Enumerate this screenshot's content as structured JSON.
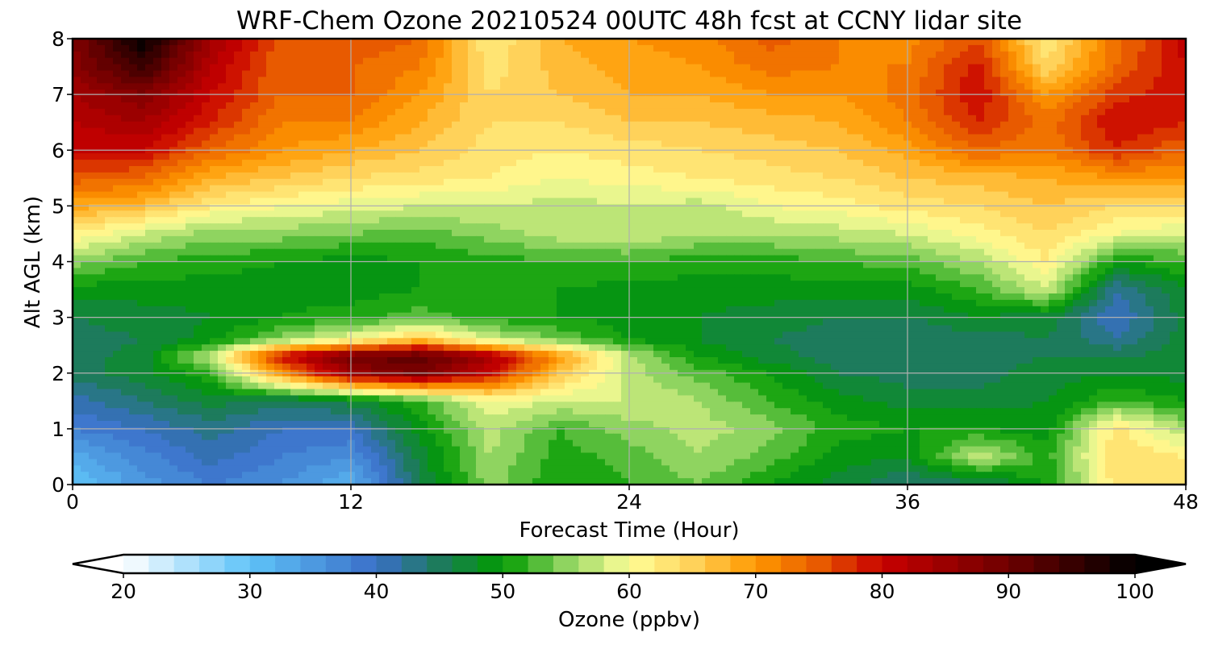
{
  "chart_data": {
    "type": "heatmap",
    "title": "WRF-Chem Ozone  20210524 00UTC 48h fcst at CCNY lidar site",
    "xlabel": "Forecast Time (Hour)",
    "ylabel": "Alt AGL (km)",
    "xlim": [
      0,
      48
    ],
    "ylim": [
      0,
      8
    ],
    "xticks": [
      0,
      12,
      24,
      36,
      48
    ],
    "yticks": [
      0,
      1,
      2,
      3,
      4,
      5,
      6,
      7,
      8
    ],
    "grid": true,
    "x": [
      0,
      3,
      6,
      9,
      12,
      15,
      18,
      21,
      24,
      27,
      30,
      33,
      36,
      39,
      42,
      45,
      48
    ],
    "y": [
      0,
      0.5,
      1,
      1.5,
      2,
      2.3,
      2.6,
      3,
      3.5,
      4,
      4.5,
      5,
      5.5,
      6,
      6.5,
      7,
      7.5,
      8
    ],
    "z": [
      [
        30,
        35,
        38,
        36,
        32,
        46,
        55,
        50,
        52,
        54,
        50,
        47,
        44,
        45,
        50,
        63,
        62
      ],
      [
        33,
        37,
        41,
        38,
        36,
        47,
        56,
        51,
        53,
        56,
        53,
        49,
        48,
        58,
        51,
        64,
        62
      ],
      [
        38,
        40,
        43,
        40,
        40,
        49,
        57,
        52,
        55,
        57,
        55,
        51,
        50,
        50,
        49,
        63,
        56
      ],
      [
        41,
        44,
        47,
        45,
        47,
        52,
        60,
        58,
        58,
        56,
        52,
        49,
        47,
        47,
        48,
        52,
        50
      ],
      [
        45,
        47,
        52,
        70,
        85,
        89,
        80,
        66,
        57,
        53,
        50,
        46,
        45,
        45,
        47,
        48,
        47
      ],
      [
        45,
        47,
        58,
        80,
        90,
        92,
        84,
        70,
        57,
        50,
        47,
        45,
        44,
        45,
        46,
        46,
        47
      ],
      [
        45,
        46,
        49,
        55,
        60,
        66,
        58,
        54,
        50,
        48,
        46,
        45,
        44,
        45,
        46,
        42,
        47
      ],
      [
        46,
        47,
        48,
        50,
        51,
        53,
        51,
        50,
        49,
        48,
        47,
        46,
        46,
        48,
        47,
        40,
        47
      ],
      [
        49,
        49,
        49,
        49,
        49,
        50,
        50,
        50,
        49,
        49,
        49,
        49,
        49,
        52,
        58,
        42,
        48
      ],
      [
        55,
        52,
        51,
        50,
        49,
        50,
        51,
        52,
        52,
        51,
        51,
        52,
        53,
        56,
        62,
        50,
        52
      ],
      [
        62,
        58,
        55,
        55,
        54,
        53,
        55,
        57,
        58,
        56,
        56,
        57,
        58,
        61,
        64,
        60,
        58
      ],
      [
        69,
        67,
        62,
        60,
        59,
        58,
        58,
        57,
        58,
        57,
        60,
        61,
        63,
        64,
        66,
        64,
        64
      ],
      [
        75,
        74,
        68,
        66,
        64,
        63,
        62,
        60,
        61,
        62,
        63,
        64,
        66,
        67,
        68,
        70,
        70
      ],
      [
        80,
        80,
        74,
        70,
        68,
        66,
        63,
        62,
        63,
        64,
        65,
        66,
        69,
        74,
        72,
        78,
        74
      ],
      [
        82,
        84,
        78,
        72,
        72,
        68,
        64,
        64,
        66,
        66,
        67,
        68,
        72,
        78,
        73,
        80,
        78
      ],
      [
        84,
        88,
        80,
        74,
        74,
        70,
        64,
        66,
        68,
        68,
        70,
        70,
        73,
        80,
        70,
        77,
        80
      ],
      [
        87,
        95,
        82,
        74,
        74,
        72,
        63,
        67,
        69,
        70,
        73,
        72,
        72,
        79,
        64,
        74,
        80
      ],
      [
        88,
        100,
        84,
        75,
        76,
        74,
        62,
        68,
        70,
        71,
        75,
        72,
        71,
        76,
        62,
        73,
        81
      ]
    ],
    "colorbar": {
      "label": "Ozone  (ppbv)",
      "min": 20,
      "max": 100,
      "ticks": [
        20,
        30,
        40,
        50,
        60,
        70,
        80,
        90,
        100
      ],
      "extend": "both",
      "stops": [
        {
          "value": 20,
          "color": "#ffffff"
        },
        {
          "value": 30,
          "color": "#5fc3f8"
        },
        {
          "value": 40,
          "color": "#3a6fc8"
        },
        {
          "value": 45,
          "color": "#1d7b5c"
        },
        {
          "value": 50,
          "color": "#009b00"
        },
        {
          "value": 55,
          "color": "#8fd460"
        },
        {
          "value": 60,
          "color": "#ffff99"
        },
        {
          "value": 65,
          "color": "#ffd25a"
        },
        {
          "value": 70,
          "color": "#ff9800"
        },
        {
          "value": 75,
          "color": "#e85a00"
        },
        {
          "value": 80,
          "color": "#c80000"
        },
        {
          "value": 90,
          "color": "#6e0000"
        },
        {
          "value": 100,
          "color": "#000000"
        }
      ]
    }
  }
}
